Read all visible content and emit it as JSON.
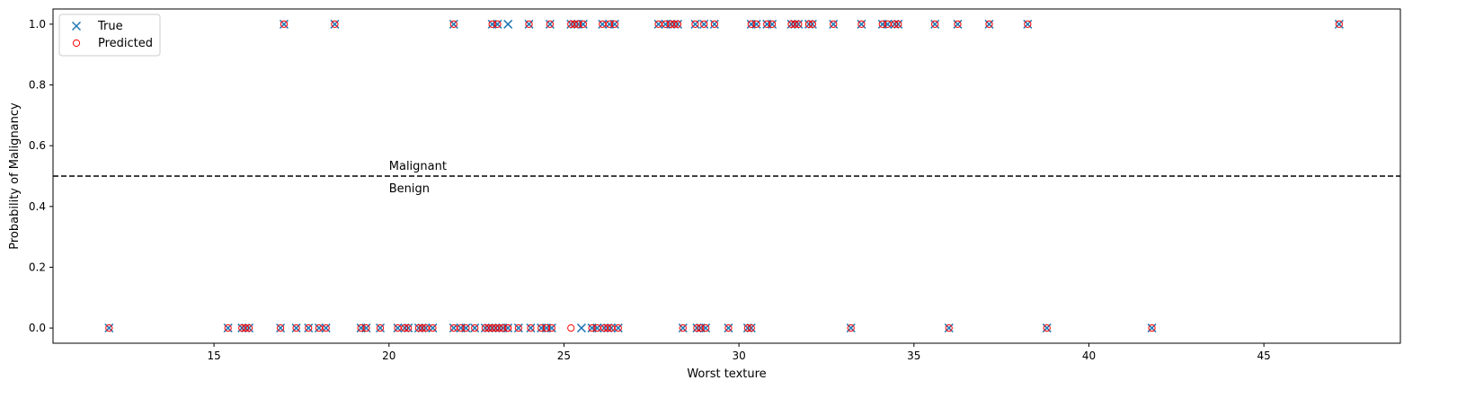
{
  "chart_data": {
    "type": "scatter",
    "xlabel": "Worst texture",
    "ylabel": "Probability of Malignancy",
    "xlim": [
      10.4,
      48.9
    ],
    "ylim": [
      -0.05,
      1.05
    ],
    "xticks": [
      "15",
      "20",
      "25",
      "30",
      "35",
      "40",
      "45"
    ],
    "yticks": [
      "0.0",
      "0.2",
      "0.4",
      "0.6",
      "0.8",
      "1.0"
    ],
    "legend_placement": "upper-left",
    "threshold": 0.5,
    "annotations": {
      "above": "Malignant",
      "below": "Benign"
    },
    "colors": {
      "true": "#1f77b4",
      "predicted": "#ff0000",
      "threshold": "#000000"
    },
    "series": [
      {
        "name": "True",
        "marker": "x",
        "points": [
          [
            17.0,
            1
          ],
          [
            18.45,
            1
          ],
          [
            21.85,
            1
          ],
          [
            22.95,
            1
          ],
          [
            23.1,
            1
          ],
          [
            23.4,
            1
          ],
          [
            24.0,
            1
          ],
          [
            24.6,
            1
          ],
          [
            25.2,
            1
          ],
          [
            25.3,
            1
          ],
          [
            25.4,
            1
          ],
          [
            25.55,
            1
          ],
          [
            26.1,
            1
          ],
          [
            26.3,
            1
          ],
          [
            26.45,
            1
          ],
          [
            27.7,
            1
          ],
          [
            27.9,
            1
          ],
          [
            28.05,
            1
          ],
          [
            28.15,
            1
          ],
          [
            28.25,
            1
          ],
          [
            28.75,
            1
          ],
          [
            29.0,
            1
          ],
          [
            29.3,
            1
          ],
          [
            30.35,
            1
          ],
          [
            30.5,
            1
          ],
          [
            30.8,
            1
          ],
          [
            30.95,
            1
          ],
          [
            31.5,
            1
          ],
          [
            31.6,
            1
          ],
          [
            31.7,
            1
          ],
          [
            32.0,
            1
          ],
          [
            32.1,
            1
          ],
          [
            32.7,
            1
          ],
          [
            33.5,
            1
          ],
          [
            34.1,
            1
          ],
          [
            34.25,
            1
          ],
          [
            34.45,
            1
          ],
          [
            34.55,
            1
          ],
          [
            35.6,
            1
          ],
          [
            36.25,
            1
          ],
          [
            37.15,
            1
          ],
          [
            38.25,
            1
          ],
          [
            47.15,
            1
          ],
          [
            12.0,
            0
          ],
          [
            15.4,
            0
          ],
          [
            15.8,
            0
          ],
          [
            15.9,
            0
          ],
          [
            16.0,
            0
          ],
          [
            16.9,
            0
          ],
          [
            17.35,
            0
          ],
          [
            17.7,
            0
          ],
          [
            18.0,
            0
          ],
          [
            18.2,
            0
          ],
          [
            19.2,
            0
          ],
          [
            19.35,
            0
          ],
          [
            19.75,
            0
          ],
          [
            20.25,
            0
          ],
          [
            20.45,
            0
          ],
          [
            20.55,
            0
          ],
          [
            20.85,
            0
          ],
          [
            20.95,
            0
          ],
          [
            21.05,
            0
          ],
          [
            21.25,
            0
          ],
          [
            21.85,
            0
          ],
          [
            22.05,
            0
          ],
          [
            22.2,
            0
          ],
          [
            22.45,
            0
          ],
          [
            22.75,
            0
          ],
          [
            22.85,
            0
          ],
          [
            22.95,
            0
          ],
          [
            23.05,
            0
          ],
          [
            23.15,
            0
          ],
          [
            23.25,
            0
          ],
          [
            23.4,
            0
          ],
          [
            23.7,
            0
          ],
          [
            24.05,
            0
          ],
          [
            24.35,
            0
          ],
          [
            24.5,
            0
          ],
          [
            24.65,
            0
          ],
          [
            25.5,
            0
          ],
          [
            25.8,
            0
          ],
          [
            25.95,
            0
          ],
          [
            26.15,
            0
          ],
          [
            26.25,
            0
          ],
          [
            26.35,
            0
          ],
          [
            26.55,
            0
          ],
          [
            28.4,
            0
          ],
          [
            28.8,
            0
          ],
          [
            28.9,
            0
          ],
          [
            29.05,
            0
          ],
          [
            29.7,
            0
          ],
          [
            30.25,
            0
          ],
          [
            30.35,
            0
          ],
          [
            33.2,
            0
          ],
          [
            36.0,
            0
          ],
          [
            38.8,
            0
          ],
          [
            41.8,
            0
          ]
        ]
      },
      {
        "name": "Predicted",
        "marker": "o",
        "points": [
          [
            17.0,
            1
          ],
          [
            18.45,
            1
          ],
          [
            21.85,
            1
          ],
          [
            22.95,
            1
          ],
          [
            23.1,
            1
          ],
          [
            24.0,
            1
          ],
          [
            24.6,
            1
          ],
          [
            25.2,
            1
          ],
          [
            25.3,
            1
          ],
          [
            25.4,
            1
          ],
          [
            25.55,
            1
          ],
          [
            26.1,
            1
          ],
          [
            26.3,
            1
          ],
          [
            26.45,
            1
          ],
          [
            27.7,
            1
          ],
          [
            27.9,
            1
          ],
          [
            28.05,
            1
          ],
          [
            28.15,
            1
          ],
          [
            28.25,
            1
          ],
          [
            28.75,
            1
          ],
          [
            29.0,
            1
          ],
          [
            29.3,
            1
          ],
          [
            30.35,
            1
          ],
          [
            30.5,
            1
          ],
          [
            30.8,
            1
          ],
          [
            30.95,
            1
          ],
          [
            31.5,
            1
          ],
          [
            31.6,
            1
          ],
          [
            31.7,
            1
          ],
          [
            32.0,
            1
          ],
          [
            32.1,
            1
          ],
          [
            32.7,
            1
          ],
          [
            33.5,
            1
          ],
          [
            34.1,
            1
          ],
          [
            34.25,
            1
          ],
          [
            34.45,
            1
          ],
          [
            34.55,
            1
          ],
          [
            35.6,
            1
          ],
          [
            36.25,
            1
          ],
          [
            37.15,
            1
          ],
          [
            38.25,
            1
          ],
          [
            47.15,
            1
          ],
          [
            12.0,
            0
          ],
          [
            15.4,
            0
          ],
          [
            15.8,
            0
          ],
          [
            15.9,
            0
          ],
          [
            16.0,
            0
          ],
          [
            16.9,
            0
          ],
          [
            17.35,
            0
          ],
          [
            17.7,
            0
          ],
          [
            18.0,
            0
          ],
          [
            18.2,
            0
          ],
          [
            19.2,
            0
          ],
          [
            19.35,
            0
          ],
          [
            19.75,
            0
          ],
          [
            20.25,
            0
          ],
          [
            20.45,
            0
          ],
          [
            20.55,
            0
          ],
          [
            20.85,
            0
          ],
          [
            20.95,
            0
          ],
          [
            21.05,
            0
          ],
          [
            21.25,
            0
          ],
          [
            21.85,
            0
          ],
          [
            22.05,
            0
          ],
          [
            22.2,
            0
          ],
          [
            22.45,
            0
          ],
          [
            22.75,
            0
          ],
          [
            22.85,
            0
          ],
          [
            22.95,
            0
          ],
          [
            23.05,
            0
          ],
          [
            23.15,
            0
          ],
          [
            23.25,
            0
          ],
          [
            23.4,
            0
          ],
          [
            23.7,
            0
          ],
          [
            24.05,
            0
          ],
          [
            24.35,
            0
          ],
          [
            24.5,
            0
          ],
          [
            24.65,
            0
          ],
          [
            25.8,
            0
          ],
          [
            25.95,
            0
          ],
          [
            26.15,
            0
          ],
          [
            26.25,
            0
          ],
          [
            26.35,
            0
          ],
          [
            26.55,
            0
          ],
          [
            28.4,
            0
          ],
          [
            28.8,
            0
          ],
          [
            28.9,
            0
          ],
          [
            29.05,
            0
          ],
          [
            29.7,
            0
          ],
          [
            30.25,
            0
          ],
          [
            30.35,
            0
          ],
          [
            33.2,
            0
          ],
          [
            36.0,
            0
          ],
          [
            38.8,
            0
          ],
          [
            41.8,
            0
          ],
          [
            23.4,
            0
          ],
          [
            25.2,
            0
          ]
        ]
      }
    ]
  }
}
